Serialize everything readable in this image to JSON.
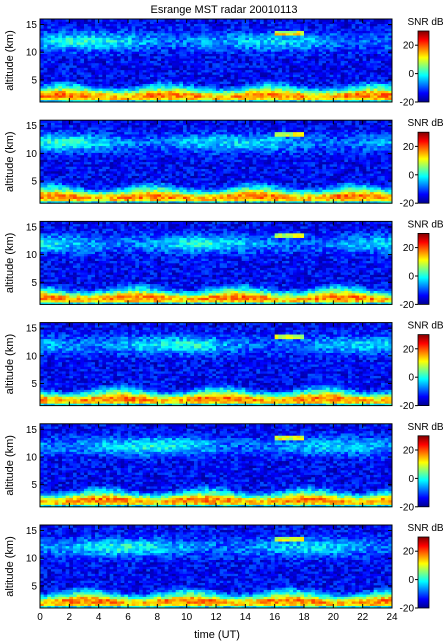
{
  "chart_data": {
    "type": "heatmap",
    "title": "Esrange MST radar 20010113",
    "xlabel": "time (UT)",
    "ylabel": "altitude (km)",
    "xlim": [
      0,
      24
    ],
    "ylim": [
      1,
      16
    ],
    "x_ticks": [
      0,
      2,
      4,
      6,
      8,
      10,
      12,
      14,
      16,
      18,
      20,
      22,
      24
    ],
    "y_ticks": [
      5,
      10,
      15
    ],
    "colorbar": {
      "label": "SNR dB",
      "range": [
        -20,
        30
      ],
      "ticks": [
        -20,
        0,
        20
      ],
      "colormap": "jet"
    },
    "grid": false,
    "panel_count": 6,
    "description_of_field": {
      "tropospheric_band_altitude_km": [
        1.5,
        5
      ],
      "tropospheric_band_snr_db": [
        15,
        30
      ],
      "upper_layer_altitude_km": [
        10,
        14
      ],
      "upper_layer_snr_db": [
        -5,
        10
      ],
      "background_snr_db": [
        -20,
        -5
      ],
      "bright_feature_time_ut": [
        16,
        18
      ],
      "bright_feature_altitude_km": 13.5
    }
  }
}
